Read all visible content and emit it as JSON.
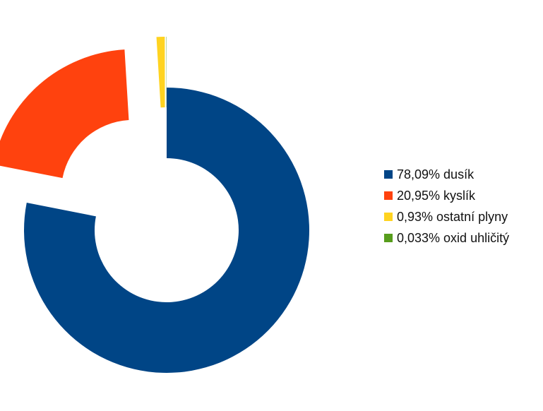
{
  "chart_data": {
    "type": "pie",
    "variant": "exploded-donut",
    "categories": [
      "dusík",
      "kyslík",
      "ostatní plyny",
      "oxid uhličitý"
    ],
    "values": [
      78.09,
      20.95,
      0.93,
      0.033
    ],
    "colors": [
      "#004586",
      "#ff420e",
      "#ffd320",
      "#579d1c"
    ],
    "legend_labels": [
      "78,09% dusík",
      "20,95% kyslík",
      "0,93% ostatní plyny",
      "0,033% oxid uhličitý"
    ],
    "legend_position": "right",
    "start_angle": "top",
    "direction": "clockwise",
    "exploded_slices": [
      "kyslík",
      "ostatní plyny",
      "oxid uhličitý"
    ],
    "title": ""
  }
}
